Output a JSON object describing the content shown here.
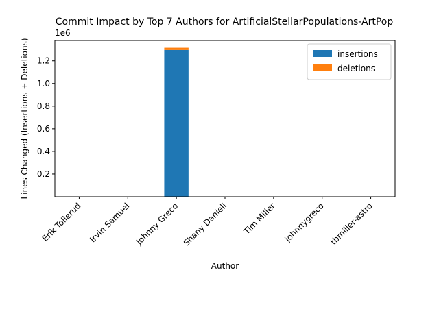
{
  "chart_data": {
    "type": "bar",
    "stacked": true,
    "title": "Commit Impact by Top 7 Authors for ArtificialStellarPopulations-ArtPop",
    "xlabel": "Author",
    "ylabel": "Lines Changed (Insertions + Deletions)",
    "y_scale_label": "1e6",
    "categories": [
      "Erik Tollerud",
      "Irvin Samuel",
      "Johnny Greco",
      "Shany Danieli",
      "Tim Miller",
      "johnnygreco",
      "tbmiller-astro"
    ],
    "series": [
      {
        "name": "insertions",
        "color": "#1f77b4",
        "values": [
          30,
          200,
          1296000,
          150,
          300,
          400,
          50
        ]
      },
      {
        "name": "deletions",
        "color": "#ff7f0e",
        "values": [
          5,
          50,
          20000,
          20,
          100,
          100,
          10
        ]
      }
    ],
    "yticks": [
      0.2,
      0.4,
      0.6,
      0.8,
      1.0,
      1.2
    ],
    "ytick_labels": [
      "0.2",
      "0.4",
      "0.6",
      "0.8",
      "1.0",
      "1.2"
    ],
    "ylim": [
      0,
      1380000
    ],
    "legend_position": "top-right",
    "grid": false
  }
}
